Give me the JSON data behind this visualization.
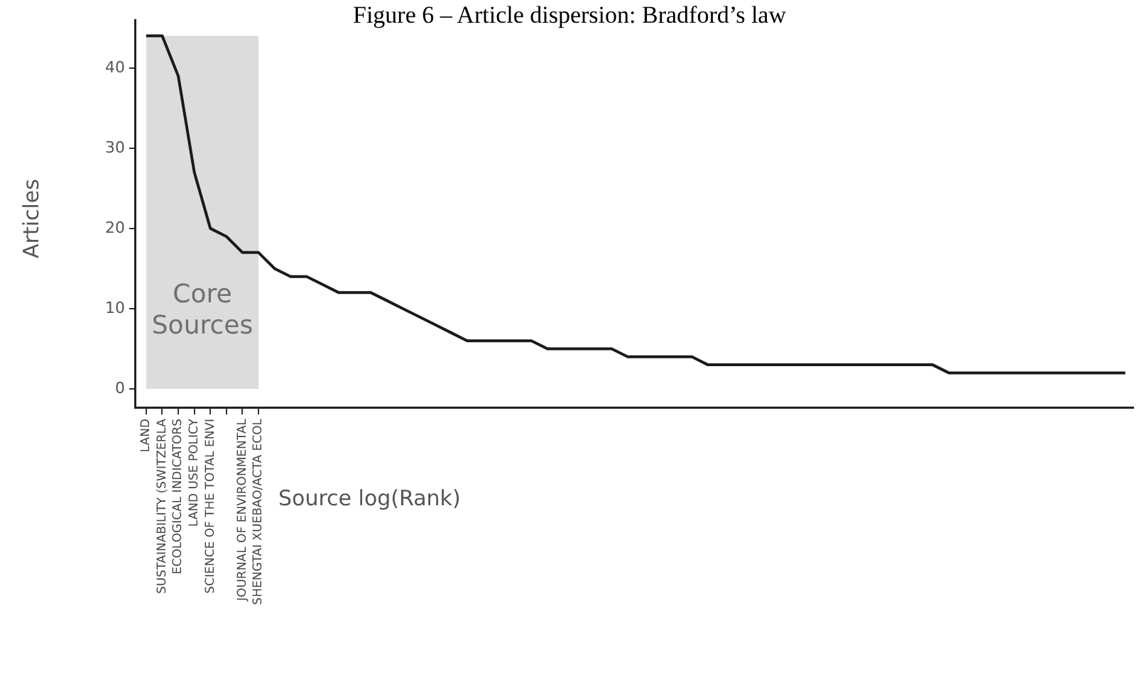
{
  "chart_data": {
    "type": "line",
    "title": "Figure 6 – Article dispersion: Bradford’s law",
    "xlabel": "Source log(Rank)",
    "ylabel": "Articles",
    "categories": [
      "LAND",
      "SUSTAINABILITY (SWITZERLA",
      "ECOLOGICAL INDICATORS",
      "LAND USE POLICY",
      "SCIENCE OF THE TOTAL ENVI",
      null,
      "JOURNAL OF ENVIRONMENTAL",
      "SHENGTAI XUEBAO/ACTA ECOL",
      null,
      null,
      null,
      null,
      null,
      null,
      null,
      null,
      null,
      null,
      null,
      null,
      null,
      null,
      null,
      null,
      null,
      null,
      null,
      null,
      null,
      null,
      null,
      null,
      null,
      null,
      null,
      null,
      null,
      null,
      null,
      null,
      null,
      null,
      null,
      null,
      null,
      null,
      null,
      null,
      null,
      null,
      null,
      null,
      null,
      null,
      null,
      null,
      null,
      null,
      null,
      null,
      null,
      null
    ],
    "series": [
      {
        "color": "#1a1a1a",
        "values": [
          44,
          44,
          39,
          27,
          20,
          19,
          17,
          17,
          15,
          14,
          14,
          13,
          12,
          12,
          12,
          11,
          10,
          9,
          8,
          7,
          6,
          6,
          6,
          6,
          6,
          5,
          5,
          5,
          5,
          5,
          4,
          4,
          4,
          4,
          4,
          3,
          3,
          3,
          3,
          3,
          3,
          3,
          3,
          3,
          3,
          3,
          3,
          3,
          3,
          3,
          2,
          2,
          2,
          2,
          2,
          2,
          2,
          2,
          2,
          2,
          2,
          2
        ]
      }
    ],
    "ylim": [
      -2.3,
      46
    ],
    "yticks": [
      0,
      10,
      20,
      30,
      40
    ],
    "bands": [
      {
        "axis": "x",
        "from": "LAND",
        "to": "SHENGTAI XUEBAO/ACTA ECOL",
        "label": "Core Sources",
        "color": "#dcdcdc"
      }
    ],
    "grid": false,
    "legend": false,
    "marker": "none",
    "line_style": "solid"
  }
}
